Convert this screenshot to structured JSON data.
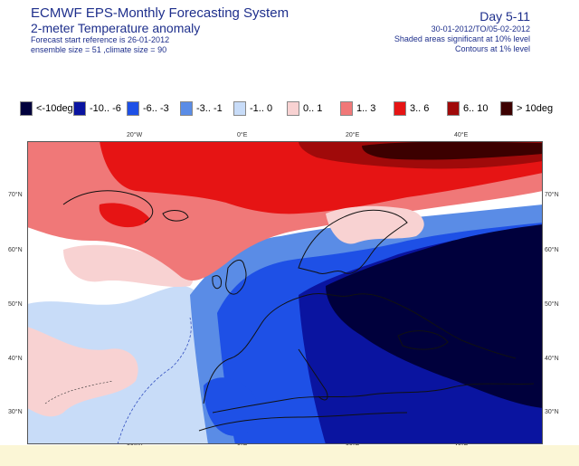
{
  "header": {
    "title": "ECMWF EPS-Monthly Forecasting System",
    "subtitle": "2-meter Temperature anomaly",
    "forecast_ref": "Forecast start reference is 26-01-2012",
    "ensemble": "ensemble size = 51  ,climate size = 90",
    "day_range": "Day 5-11",
    "date_range": "30-01-2012/TO/05-02-2012",
    "shaded_note": "Shaded areas significant at 10% level",
    "contour_note": "Contours at 1% level"
  },
  "legend": [
    {
      "label": "<-10deg",
      "color": "#00003c"
    },
    {
      "label": "-10.. -6",
      "color": "#0a14a0"
    },
    {
      "label": "-6.. -3",
      "color": "#1e50e6"
    },
    {
      "label": "-3.. -1",
      "color": "#5a8ce6"
    },
    {
      "label": "-1.. 0",
      "color": "#c8dcf8"
    },
    {
      "label": "0.. 1",
      "color": "#f8d2d2"
    },
    {
      "label": "1.. 3",
      "color": "#f07878"
    },
    {
      "label": "3.. 6",
      "color": "#e61414"
    },
    {
      "label": "6.. 10",
      "color": "#a00a0a"
    },
    {
      "label": "> 10deg",
      "color": "#3c0000"
    }
  ],
  "lon_labels": [
    "20°W",
    "0°E",
    "20°E",
    "40°E"
  ],
  "lat_labels": [
    "70°N",
    "60°N",
    "50°N",
    "40°N",
    "30°N"
  ]
}
